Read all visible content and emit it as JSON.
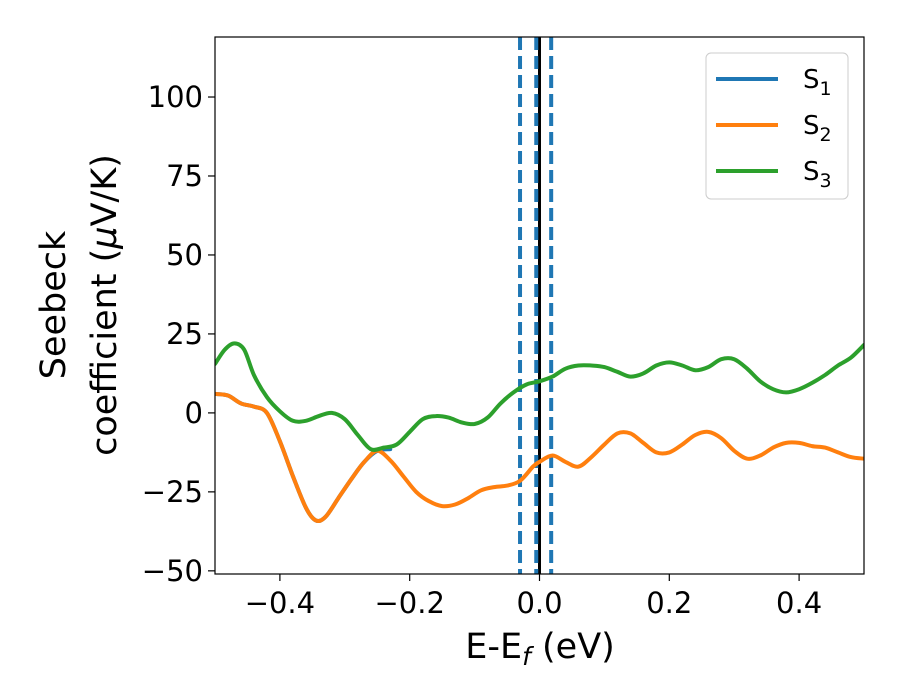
{
  "chart_data": {
    "type": "line",
    "title": "",
    "xlabel": {
      "main": "E-E",
      "sub": "f",
      "tail": " (eV)"
    },
    "ylabel": {
      "line1": "Seebeck",
      "line2_pre": "coefficient  (",
      "line2_mu": "μ",
      "line2_post": "V/K)"
    },
    "xlim": [
      -0.5,
      0.5
    ],
    "ylim": [
      -51,
      119
    ],
    "x_ticks": [
      -0.4,
      -0.2,
      0.0,
      0.2,
      0.4
    ],
    "x_tick_labels": [
      "−0.4",
      "−0.2",
      "0.0",
      "0.2",
      "0.4"
    ],
    "y_ticks": [
      -50,
      -25,
      0,
      25,
      50,
      75,
      100
    ],
    "y_tick_labels": [
      "−50",
      "−25",
      "0",
      "25",
      "50",
      "75",
      "100"
    ],
    "grid": false,
    "legend_position": "top-right",
    "colors": {
      "S1": "#1f77b4",
      "S2": "#ff7f0e",
      "S3": "#2ca02c",
      "fermi_line": "#000000",
      "dashed_lines": "#1f77b4",
      "frame": "#000000"
    },
    "series": [
      {
        "key": "S1",
        "legend": {
          "main": "S",
          "sub": "1"
        },
        "color": "#1f77b4",
        "points": [
          [
            -0.5,
            6
          ],
          [
            -0.48,
            5.5
          ],
          [
            -0.46,
            3
          ],
          [
            -0.44,
            2
          ],
          [
            -0.42,
            0
          ],
          [
            -0.4,
            -9
          ],
          [
            -0.38,
            -20
          ],
          [
            -0.36,
            -30
          ],
          [
            -0.345,
            -34
          ],
          [
            -0.33,
            -33
          ],
          [
            -0.31,
            -27
          ],
          [
            -0.29,
            -21
          ],
          [
            -0.27,
            -15.5
          ],
          [
            -0.25,
            -12
          ],
          [
            -0.23,
            -11.5
          ]
        ]
      },
      {
        "key": "S2",
        "legend": {
          "main": "S",
          "sub": "2"
        },
        "color": "#ff7f0e",
        "points": [
          [
            -0.5,
            6
          ],
          [
            -0.48,
            5.5
          ],
          [
            -0.46,
            3
          ],
          [
            -0.44,
            2
          ],
          [
            -0.42,
            0
          ],
          [
            -0.4,
            -9
          ],
          [
            -0.38,
            -20
          ],
          [
            -0.36,
            -30
          ],
          [
            -0.345,
            -34
          ],
          [
            -0.33,
            -33
          ],
          [
            -0.31,
            -27
          ],
          [
            -0.29,
            -21
          ],
          [
            -0.27,
            -15.5
          ],
          [
            -0.25,
            -12
          ],
          [
            -0.23,
            -15
          ],
          [
            -0.21,
            -20
          ],
          [
            -0.19,
            -25
          ],
          [
            -0.17,
            -28
          ],
          [
            -0.15,
            -29.5
          ],
          [
            -0.13,
            -29
          ],
          [
            -0.11,
            -27
          ],
          [
            -0.09,
            -24.5
          ],
          [
            -0.07,
            -23.5
          ],
          [
            -0.05,
            -23
          ],
          [
            -0.03,
            -21.5
          ],
          [
            -0.01,
            -17
          ],
          [
            0.0,
            -15.5
          ],
          [
            0.02,
            -13.5
          ],
          [
            0.04,
            -15.5
          ],
          [
            0.06,
            -17
          ],
          [
            0.08,
            -14
          ],
          [
            0.1,
            -10
          ],
          [
            0.12,
            -6.5
          ],
          [
            0.14,
            -6.5
          ],
          [
            0.16,
            -9.5
          ],
          [
            0.18,
            -12.5
          ],
          [
            0.2,
            -12.5
          ],
          [
            0.22,
            -10
          ],
          [
            0.24,
            -7
          ],
          [
            0.26,
            -6
          ],
          [
            0.28,
            -8
          ],
          [
            0.3,
            -12
          ],
          [
            0.32,
            -14.5
          ],
          [
            0.34,
            -13.5
          ],
          [
            0.36,
            -11
          ],
          [
            0.38,
            -9.5
          ],
          [
            0.4,
            -9.5
          ],
          [
            0.42,
            -10.5
          ],
          [
            0.44,
            -11
          ],
          [
            0.46,
            -12.5
          ],
          [
            0.48,
            -14
          ],
          [
            0.5,
            -14.5
          ]
        ]
      },
      {
        "key": "S3",
        "legend": {
          "main": "S",
          "sub": "3"
        },
        "color": "#2ca02c",
        "points": [
          [
            -0.5,
            15.5
          ],
          [
            -0.485,
            20
          ],
          [
            -0.47,
            22
          ],
          [
            -0.455,
            20
          ],
          [
            -0.44,
            12
          ],
          [
            -0.42,
            5
          ],
          [
            -0.4,
            0.5
          ],
          [
            -0.38,
            -2.5
          ],
          [
            -0.36,
            -2.5
          ],
          [
            -0.34,
            -1
          ],
          [
            -0.32,
            0
          ],
          [
            -0.3,
            -2
          ],
          [
            -0.28,
            -7
          ],
          [
            -0.26,
            -11.5
          ],
          [
            -0.24,
            -11
          ],
          [
            -0.22,
            -10
          ],
          [
            -0.2,
            -6
          ],
          [
            -0.18,
            -2
          ],
          [
            -0.16,
            -1
          ],
          [
            -0.14,
            -1.5
          ],
          [
            -0.12,
            -3
          ],
          [
            -0.1,
            -3.5
          ],
          [
            -0.08,
            -1.5
          ],
          [
            -0.06,
            3
          ],
          [
            -0.04,
            6.5
          ],
          [
            -0.02,
            9
          ],
          [
            0.0,
            10
          ],
          [
            0.02,
            11.5
          ],
          [
            0.04,
            14
          ],
          [
            0.06,
            15
          ],
          [
            0.08,
            15
          ],
          [
            0.1,
            14.5
          ],
          [
            0.12,
            13
          ],
          [
            0.14,
            11.5
          ],
          [
            0.16,
            12.5
          ],
          [
            0.18,
            15
          ],
          [
            0.2,
            16
          ],
          [
            0.22,
            15
          ],
          [
            0.24,
            13.5
          ],
          [
            0.26,
            14.5
          ],
          [
            0.28,
            17
          ],
          [
            0.3,
            17
          ],
          [
            0.32,
            14
          ],
          [
            0.34,
            10
          ],
          [
            0.36,
            7.5
          ],
          [
            0.38,
            6.5
          ],
          [
            0.4,
            7.5
          ],
          [
            0.42,
            9.5
          ],
          [
            0.44,
            12
          ],
          [
            0.46,
            15
          ],
          [
            0.48,
            17.5
          ],
          [
            0.5,
            21.5
          ]
        ]
      }
    ],
    "vertical_lines": [
      {
        "x": 0.0,
        "style": "solid",
        "color": "#000000"
      },
      {
        "x": -0.03,
        "style": "dashed",
        "color": "#1f77b4"
      },
      {
        "x": -0.005,
        "style": "dashed",
        "color": "#1f77b4"
      },
      {
        "x": 0.018,
        "style": "dashed",
        "color": "#1f77b4"
      }
    ]
  }
}
